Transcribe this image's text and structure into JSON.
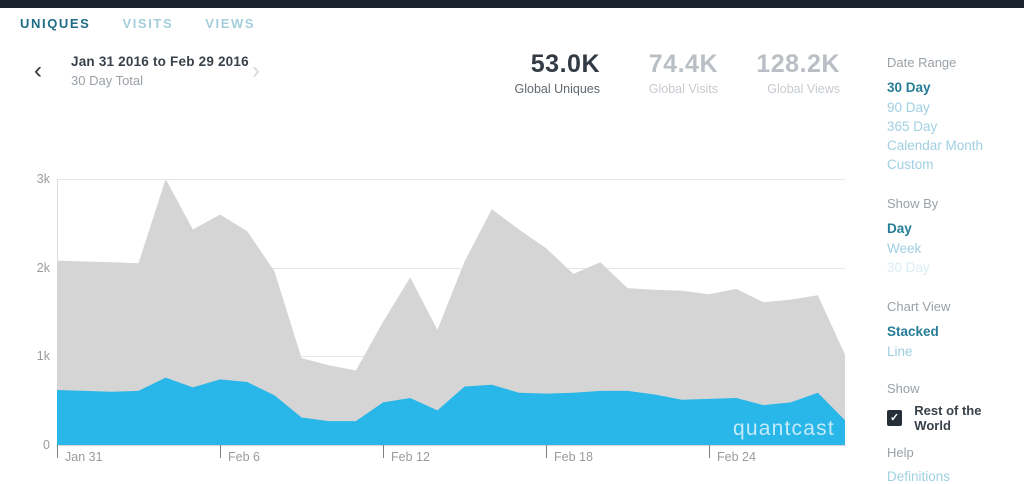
{
  "tabs": [
    {
      "label": "UNIQUES",
      "active": true
    },
    {
      "label": "VISITS",
      "active": false
    },
    {
      "label": "VIEWS",
      "active": false
    }
  ],
  "header": {
    "prev_icon": "‹",
    "next_icon": "›",
    "date_range": "Jan 31 2016 to Feb 29 2016",
    "subtitle": "30 Day Total"
  },
  "stats": [
    {
      "value": "53.0K",
      "label": "Global Uniques",
      "active": true
    },
    {
      "value": "74.4K",
      "label": "Global Visits",
      "active": false
    },
    {
      "value": "128.2K",
      "label": "Global Views",
      "active": false
    }
  ],
  "sidebar": {
    "date_range": {
      "title": "Date Range",
      "options": [
        {
          "label": "30 Day",
          "state": "active"
        },
        {
          "label": "90 Day",
          "state": "normal"
        },
        {
          "label": "365 Day",
          "state": "normal"
        },
        {
          "label": "Calendar Month",
          "state": "normal"
        },
        {
          "label": "Custom",
          "state": "normal"
        }
      ]
    },
    "show_by": {
      "title": "Show By",
      "options": [
        {
          "label": "Day",
          "state": "active"
        },
        {
          "label": "Week",
          "state": "normal"
        },
        {
          "label": "30 Day",
          "state": "disabled"
        }
      ]
    },
    "chart_view": {
      "title": "Chart View",
      "options": [
        {
          "label": "Stacked",
          "state": "active"
        },
        {
          "label": "Line",
          "state": "normal"
        }
      ]
    },
    "show": {
      "title": "Show",
      "checkbox_label": "Rest of the World",
      "checked": true,
      "check_glyph": "✓"
    },
    "help": {
      "title": "Help",
      "link": "Definitions"
    }
  },
  "chart_data": {
    "type": "area",
    "stacked": true,
    "title": "",
    "xlabel": "",
    "ylabel": "",
    "ylim": [
      0,
      3000
    ],
    "grid": true,
    "y_ticks": [
      "3k",
      "2k",
      "1k",
      "0"
    ],
    "x_axis_ticks": [
      "Jan 31",
      "Feb 6",
      "Feb 12",
      "Feb 18",
      "Feb 24"
    ],
    "x": [
      "Jan 31",
      "Feb 1",
      "Feb 2",
      "Feb 3",
      "Feb 4",
      "Feb 5",
      "Feb 6",
      "Feb 7",
      "Feb 8",
      "Feb 9",
      "Feb 10",
      "Feb 11",
      "Feb 12",
      "Feb 13",
      "Feb 14",
      "Feb 15",
      "Feb 16",
      "Feb 17",
      "Feb 18",
      "Feb 19",
      "Feb 20",
      "Feb 21",
      "Feb 22",
      "Feb 23",
      "Feb 24",
      "Feb 25",
      "Feb 26",
      "Feb 27",
      "Feb 28",
      "Feb 29"
    ],
    "series": [
      {
        "name": "Global Uniques",
        "color": "#29b6e8",
        "values": [
          620,
          610,
          600,
          610,
          760,
          650,
          740,
          710,
          560,
          310,
          270,
          270,
          480,
          530,
          390,
          660,
          680,
          590,
          580,
          590,
          610,
          610,
          570,
          510,
          520,
          530,
          450,
          480,
          590,
          280
        ]
      },
      {
        "name": "Rest of the World",
        "color": "#d5d5d5",
        "values": [
          1460,
          1460,
          1460,
          1440,
          2240,
          1780,
          1860,
          1700,
          1400,
          670,
          630,
          570,
          910,
          1360,
          910,
          1410,
          1980,
          1840,
          1640,
          1340,
          1450,
          1160,
          1180,
          1230,
          1180,
          1230,
          1160,
          1160,
          1100,
          740
        ]
      }
    ],
    "totals": [
      2080,
      2070,
      2060,
      2050,
      3000,
      2430,
      2600,
      2410,
      1960,
      980,
      900,
      840,
      1390,
      1890,
      1300,
      2070,
      2660,
      2430,
      2220,
      1930,
      2060,
      1770,
      1750,
      1740,
      1700,
      1760,
      1610,
      1640,
      1690,
      1020
    ],
    "watermark": "quantcast"
  }
}
